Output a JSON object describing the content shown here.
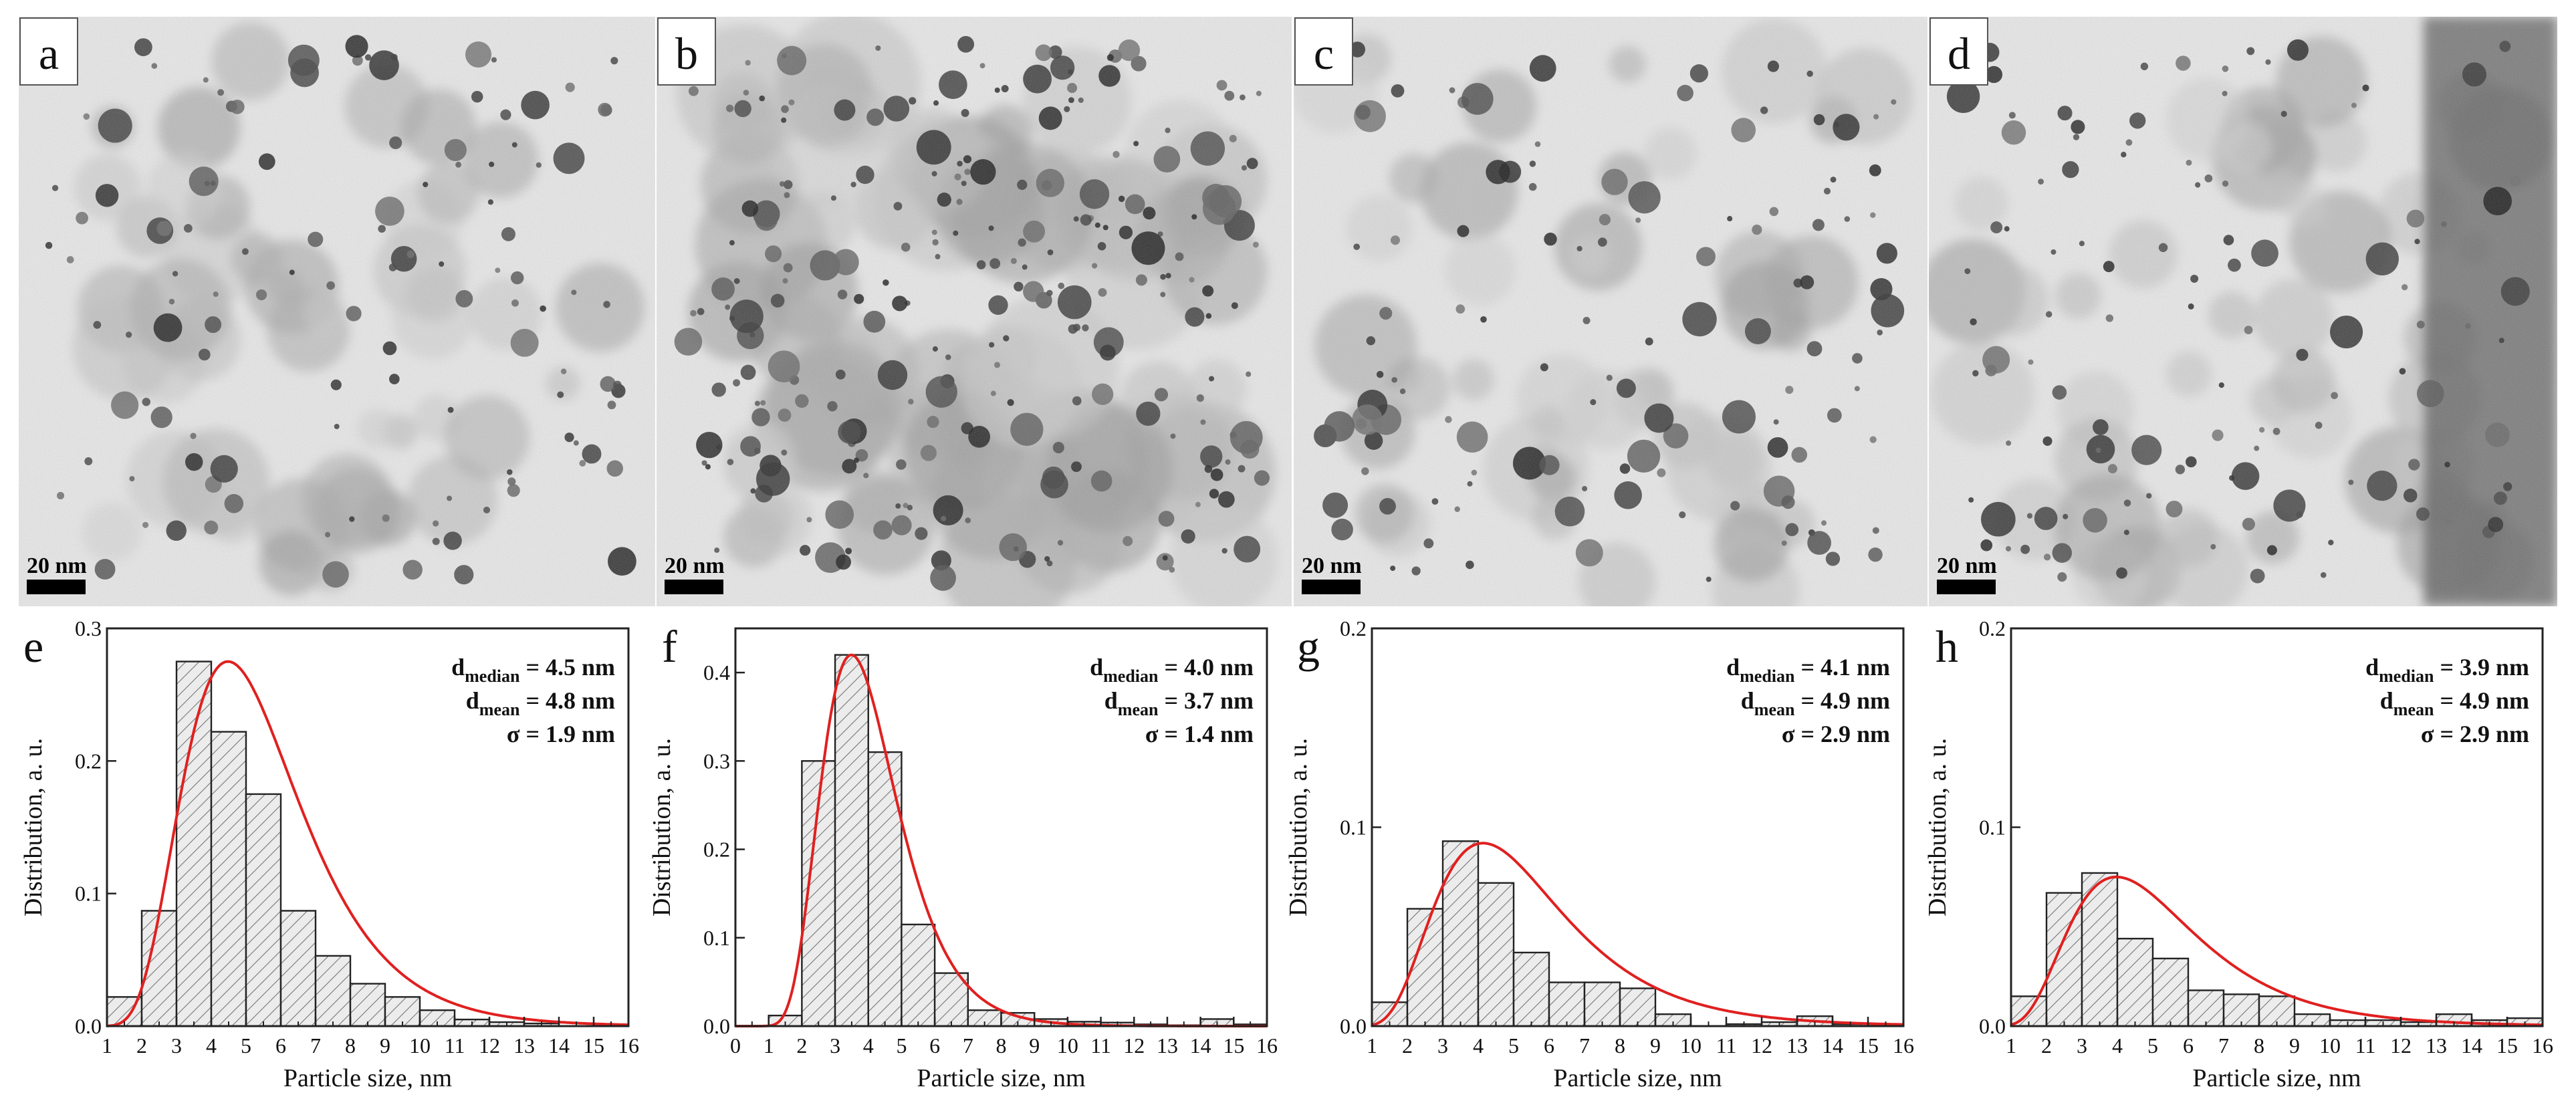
{
  "tem_panels": [
    {
      "letter": "a",
      "scale_label": "20 nm"
    },
    {
      "letter": "b",
      "scale_label": "20 nm"
    },
    {
      "letter": "c",
      "scale_label": "20 nm"
    },
    {
      "letter": "d",
      "scale_label": "20 nm"
    }
  ],
  "chart_data": [
    {
      "type": "bar",
      "panel_label": "e",
      "xlabel": "Particle size, nm",
      "ylabel": "Distribution, a. u.",
      "xlim": [
        1,
        16
      ],
      "x_ticks": [
        "1",
        "2",
        "3",
        "4",
        "5",
        "6",
        "7",
        "8",
        "9",
        "10",
        "11",
        "12",
        "13",
        "14",
        "15",
        "16"
      ],
      "ylim": [
        0,
        0.3
      ],
      "y_ticks": [
        0.0,
        0.1,
        0.2,
        0.3
      ],
      "y_tick_labels": [
        "0.0",
        "0.1",
        "0.2",
        "0.3"
      ],
      "bin_edges": [
        1,
        2,
        3,
        4,
        5,
        6,
        7,
        8,
        9,
        10,
        11,
        12,
        13,
        14,
        15,
        16
      ],
      "values": [
        0.022,
        0.087,
        0.275,
        0.222,
        0.175,
        0.087,
        0.053,
        0.032,
        0.022,
        0.012,
        0.005,
        0.003,
        0.002,
        0,
        0
      ],
      "fit": {
        "type": "lognormal",
        "color": "#e02020",
        "mu": 1.5,
        "sigma": 0.38,
        "amp": 0.275
      },
      "annotations": [
        {
          "d": "d",
          "sub": "median",
          "rest": " = 4.5 nm"
        },
        {
          "d": "d",
          "sub": "mean",
          "rest": " = 4.8 nm"
        },
        {
          "d": "σ",
          "sub": "",
          "rest": " = 1.9 nm"
        }
      ]
    },
    {
      "type": "bar",
      "panel_label": "f",
      "xlabel": "Particle size, nm",
      "ylabel": "Distribution, a. u.",
      "xlim": [
        0,
        16
      ],
      "x_ticks": [
        "0",
        "1",
        "2",
        "3",
        "4",
        "5",
        "6",
        "7",
        "8",
        "9",
        "10",
        "11",
        "12",
        "13",
        "14",
        "15",
        "16"
      ],
      "ylim": [
        0,
        0.45
      ],
      "y_ticks": [
        0.0,
        0.1,
        0.2,
        0.3,
        0.4
      ],
      "y_tick_labels": [
        "0.0",
        "0.1",
        "0.2",
        "0.3",
        "0.4"
      ],
      "bin_edges": [
        1,
        2,
        3,
        4,
        5,
        6,
        7,
        8,
        9,
        10,
        11,
        12,
        13,
        14,
        15,
        16
      ],
      "values": [
        0.012,
        0.3,
        0.42,
        0.31,
        0.115,
        0.06,
        0.018,
        0.015,
        0.008,
        0.005,
        0.004,
        0.002,
        0.001,
        0.008,
        0.002
      ],
      "fit": {
        "type": "lognormal",
        "color": "#e02020",
        "mu": 1.25,
        "sigma": 0.33,
        "amp": 0.42
      },
      "annotations": [
        {
          "d": "d",
          "sub": "median",
          "rest": " = 4.0 nm"
        },
        {
          "d": "d",
          "sub": "mean",
          "rest": " = 3.7 nm"
        },
        {
          "d": "σ",
          "sub": "",
          "rest": " = 1.4 nm"
        }
      ]
    },
    {
      "type": "bar",
      "panel_label": "g",
      "xlabel": "Particle size, nm",
      "ylabel": "Distribution, a. u.",
      "xlim": [
        1,
        16
      ],
      "x_ticks": [
        "1",
        "2",
        "3",
        "4",
        "5",
        "6",
        "7",
        "8",
        "9",
        "10",
        "11",
        "12",
        "13",
        "14",
        "15",
        "16"
      ],
      "ylim": [
        0,
        0.2
      ],
      "y_ticks": [
        0.0,
        0.1,
        0.2
      ],
      "y_tick_labels": [
        "0.0",
        "0.1",
        "0.2"
      ],
      "bin_edges": [
        1,
        2,
        3,
        4,
        5,
        6,
        7,
        8,
        9,
        10,
        11,
        12,
        13,
        14,
        15,
        16
      ],
      "values": [
        0.012,
        0.059,
        0.093,
        0.072,
        0.037,
        0.022,
        0.022,
        0.019,
        0.006,
        0.0,
        0.001,
        0.002,
        0.005,
        0.001,
        0.001
      ],
      "fit": {
        "type": "lognormal",
        "color": "#e02020",
        "mu": 1.42,
        "sigma": 0.44,
        "amp": 0.092
      },
      "annotations": [
        {
          "d": "d",
          "sub": "median",
          "rest": " = 4.1 nm"
        },
        {
          "d": "d",
          "sub": "mean",
          "rest": " = 4.9 nm"
        },
        {
          "d": "σ",
          "sub": "",
          "rest": " = 2.9 nm"
        }
      ]
    },
    {
      "type": "bar",
      "panel_label": "h",
      "xlabel": "Particle size, nm",
      "ylabel": "Distribution, a. u.",
      "xlim": [
        1,
        16
      ],
      "x_ticks": [
        "1",
        "2",
        "3",
        "4",
        "5",
        "6",
        "7",
        "8",
        "9",
        "10",
        "11",
        "12",
        "13",
        "14",
        "15",
        "16"
      ],
      "ylim": [
        0,
        0.2
      ],
      "y_ticks": [
        0.0,
        0.1,
        0.2
      ],
      "y_tick_labels": [
        "0.0",
        "0.1",
        "0.2"
      ],
      "bin_edges": [
        1,
        2,
        3,
        4,
        5,
        6,
        7,
        8,
        9,
        10,
        11,
        12,
        13,
        14,
        15,
        16
      ],
      "values": [
        0.015,
        0.067,
        0.077,
        0.044,
        0.034,
        0.018,
        0.016,
        0.015,
        0.006,
        0.003,
        0.003,
        0.002,
        0.006,
        0.003,
        0.004
      ],
      "fit": {
        "type": "lognormal",
        "color": "#e02020",
        "mu": 1.38,
        "sigma": 0.45,
        "amp": 0.075
      },
      "annotations": [
        {
          "d": "d",
          "sub": "median",
          "rest": " = 3.9 nm"
        },
        {
          "d": "d",
          "sub": "mean",
          "rest": " = 4.9 nm"
        },
        {
          "d": "σ",
          "sub": "",
          "rest": " = 2.9 nm"
        }
      ]
    }
  ]
}
